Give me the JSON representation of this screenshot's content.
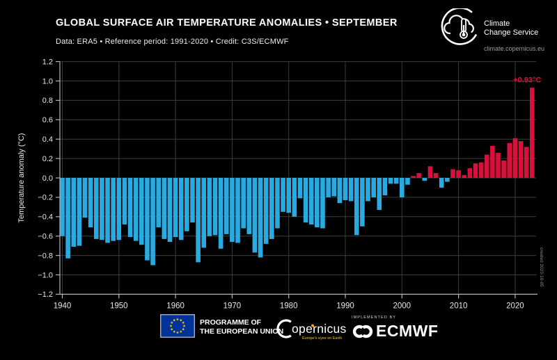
{
  "header": {
    "title": "GLOBAL SURFACE AIR TEMPERATURE ANOMALIES • SEPTEMBER",
    "subtitle": "Data: ERA5 • Reference period: 1991-2020 • Credit: C3S/ECMWF",
    "logo": {
      "line1": "Climate",
      "line2": "Change Service",
      "url": "climate.copernicus.eu"
    }
  },
  "chart_data": {
    "type": "bar",
    "title": "Global surface air temperature anomalies • September",
    "ylabel": "Temperature anomaly (°C)",
    "ylim": [
      -1.2,
      1.2
    ],
    "ytick_step": 0.2,
    "xticks": [
      1940,
      1950,
      1960,
      1970,
      1980,
      1990,
      2000,
      2010,
      2020
    ],
    "grid": true,
    "start_year": 1940,
    "years_span": "1940-2023",
    "values": [
      -0.6,
      -0.83,
      -0.71,
      -0.7,
      -0.41,
      -0.51,
      -0.63,
      -0.64,
      -0.67,
      -0.65,
      -0.64,
      -0.48,
      -0.61,
      -0.65,
      -0.69,
      -0.85,
      -0.9,
      -0.51,
      -0.63,
      -0.66,
      -0.61,
      -0.64,
      -0.55,
      -0.46,
      -0.87,
      -0.72,
      -0.6,
      -0.59,
      -0.73,
      -0.58,
      -0.66,
      -0.67,
      -0.52,
      -0.58,
      -0.77,
      -0.82,
      -0.68,
      -0.63,
      -0.52,
      -0.35,
      -0.36,
      -0.4,
      -0.21,
      -0.46,
      -0.48,
      -0.51,
      -0.52,
      -0.2,
      -0.19,
      -0.26,
      -0.23,
      -0.24,
      -0.59,
      -0.5,
      -0.24,
      -0.2,
      -0.33,
      -0.18,
      -0.06,
      -0.06,
      -0.2,
      -0.07,
      0.02,
      0.05,
      -0.03,
      0.12,
      0.05,
      -0.1,
      -0.04,
      0.09,
      0.08,
      0.03,
      0.1,
      0.15,
      0.16,
      0.24,
      0.33,
      0.26,
      0.18,
      0.36,
      0.41,
      0.38,
      0.32,
      0.93
    ],
    "annotation": {
      "text": "+0.93°C",
      "year": 2023
    },
    "created_label": "created  2023-10-05",
    "colors": {
      "positive": "#d8113c",
      "negative": "#29abe2",
      "grid": "#3d3d3d",
      "axis": "#b4b4b4",
      "tick_label": "#e8e8e8",
      "background": "#000000"
    }
  },
  "footer": {
    "eu_line1": "PROGRAMME OF",
    "eu_line2": "THE EUROPEAN UNION",
    "copernicus_name": "opernicus",
    "copernicus_tagline": "Europe's eyes on Earth",
    "implemented_by": "IMPLEMENTED BY",
    "ecmwf_name": "ECMWF"
  }
}
